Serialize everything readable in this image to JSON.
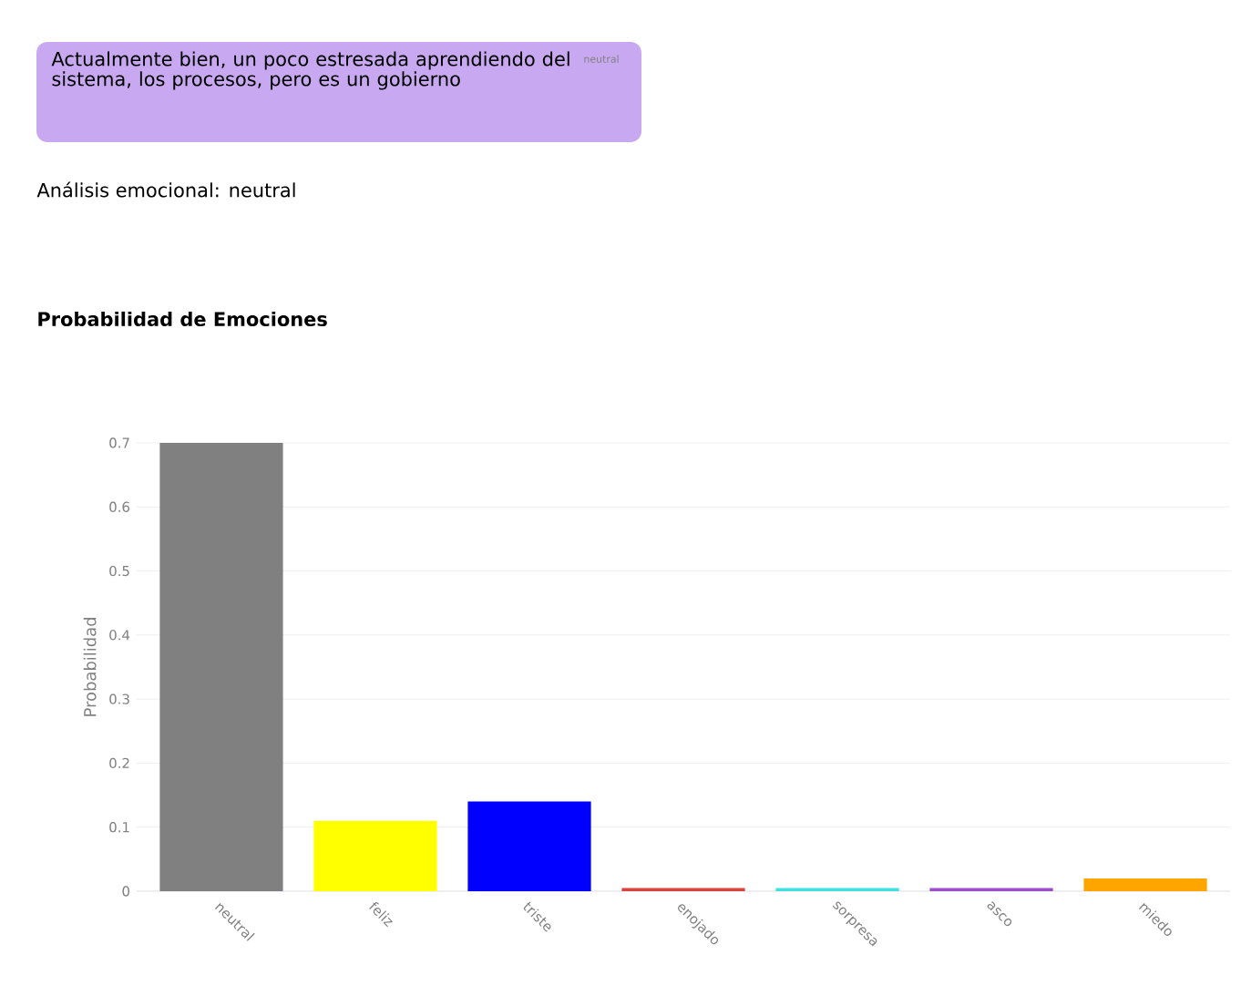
{
  "chart_data": {
    "type": "bar",
    "title": "Probabilidad de Emociones",
    "ylabel": "Probabilidad",
    "annotations": [
      "Actualmente bien, un poco estresada aprendiendo del sistema, los procesos, pero es un gobierno",
      "neutral",
      "Análisis emocional: neutral"
    ],
    "categories": [
      "neutral",
      "feliz",
      "triste",
      "enojado",
      "sorpresa",
      "asco",
      "miedo"
    ],
    "values": [
      0.7,
      0.11,
      0.14,
      0.005,
      0.005,
      0.005,
      0.02
    ],
    "colors": [
      "#808080",
      "#ffff00",
      "#0000ff",
      "#d9433b",
      "#40e0e0",
      "#9b4dca",
      "#ffa500"
    ],
    "ylim": [
      0,
      0.7
    ],
    "yticks": [
      0,
      0.1,
      0.2,
      0.3,
      0.4,
      0.5,
      0.6,
      0.7
    ],
    "grid": "y"
  }
}
